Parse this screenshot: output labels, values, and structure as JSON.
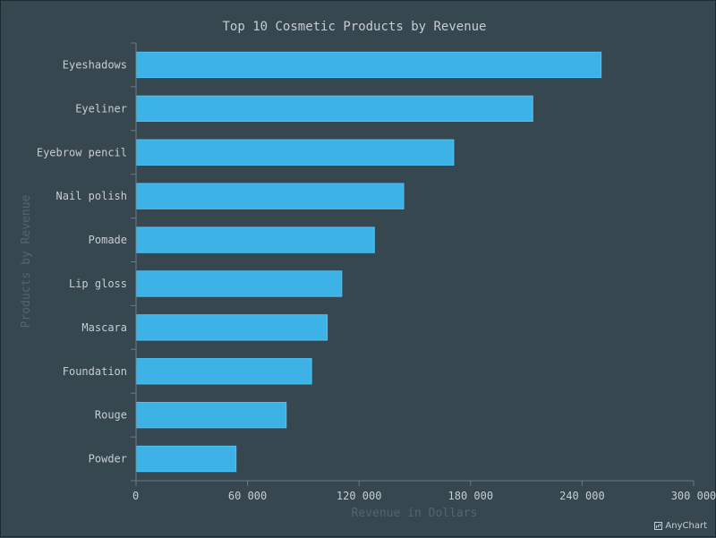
{
  "chart_data": {
    "type": "bar",
    "orientation": "horizontal",
    "title": "Top 10 Cosmetic Products by Revenue",
    "xlabel": "Revenue in Dollars",
    "ylabel": "Products by Revenue",
    "categories": [
      "Eyeshadows",
      "Eyeliner",
      "Eyebrow pencil",
      "Nail polish",
      "Pomade",
      "Lip gloss",
      "Mascara",
      "Foundation",
      "Rouge",
      "Powder"
    ],
    "values": [
      249980,
      213210,
      170670,
      143760,
      128000,
      110430,
      102610,
      94190,
      80540,
      53540
    ],
    "xlim": [
      0,
      300000
    ],
    "xticks": [
      0,
      60000,
      120000,
      180000,
      240000,
      300000
    ],
    "xtick_labels": [
      "0",
      "60 000",
      "120 000",
      "180 000",
      "240 000",
      "300 000"
    ],
    "grid": false,
    "legend": "none",
    "colors": {
      "bar_fill": "#3db2e6",
      "bar_stroke": "#4dc3f5",
      "axis": "#6a7a82",
      "text": "#c6cdd1",
      "axis_title": "#55656d",
      "background": "#37474f"
    }
  },
  "credits": {
    "label": "AnyChart",
    "icon": "anychart-logo-icon"
  }
}
